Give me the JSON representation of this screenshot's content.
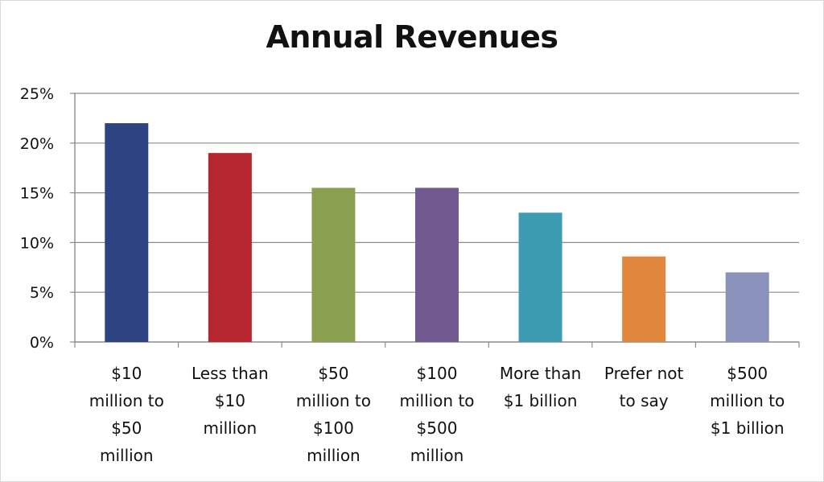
{
  "chart_data": {
    "type": "bar",
    "title": "Annual Revenues",
    "xlabel": "",
    "ylabel": "",
    "ylim": [
      0,
      25
    ],
    "yticks": [
      "0%",
      "5%",
      "10%",
      "15%",
      "20%",
      "25%"
    ],
    "grid": true,
    "legend": "none",
    "categories": [
      "$10 million to $50 million",
      "Less than $10 million",
      "$50 million to $100 million",
      "$100 million to $500 million",
      "More than $1 billion",
      "Prefer not to say",
      "$500 million to $1 billion"
    ],
    "category_lines": [
      [
        "$10",
        "million to",
        "$50",
        "million"
      ],
      [
        "Less than",
        "$10",
        "million"
      ],
      [
        "$50",
        "million to",
        "$100",
        "million"
      ],
      [
        "$100",
        "million to",
        "$500",
        "million"
      ],
      [
        "More than",
        "$1 billion"
      ],
      [
        "Prefer not",
        "to say"
      ],
      [
        "$500",
        "million to",
        "$1 billion"
      ]
    ],
    "values": [
      22,
      19,
      15.5,
      15.5,
      13,
      8.6,
      7
    ],
    "colors": [
      "#2e4482",
      "#b5262f",
      "#8aa050",
      "#705a90",
      "#3e9cb2",
      "#e0873d",
      "#8a91bb"
    ]
  }
}
